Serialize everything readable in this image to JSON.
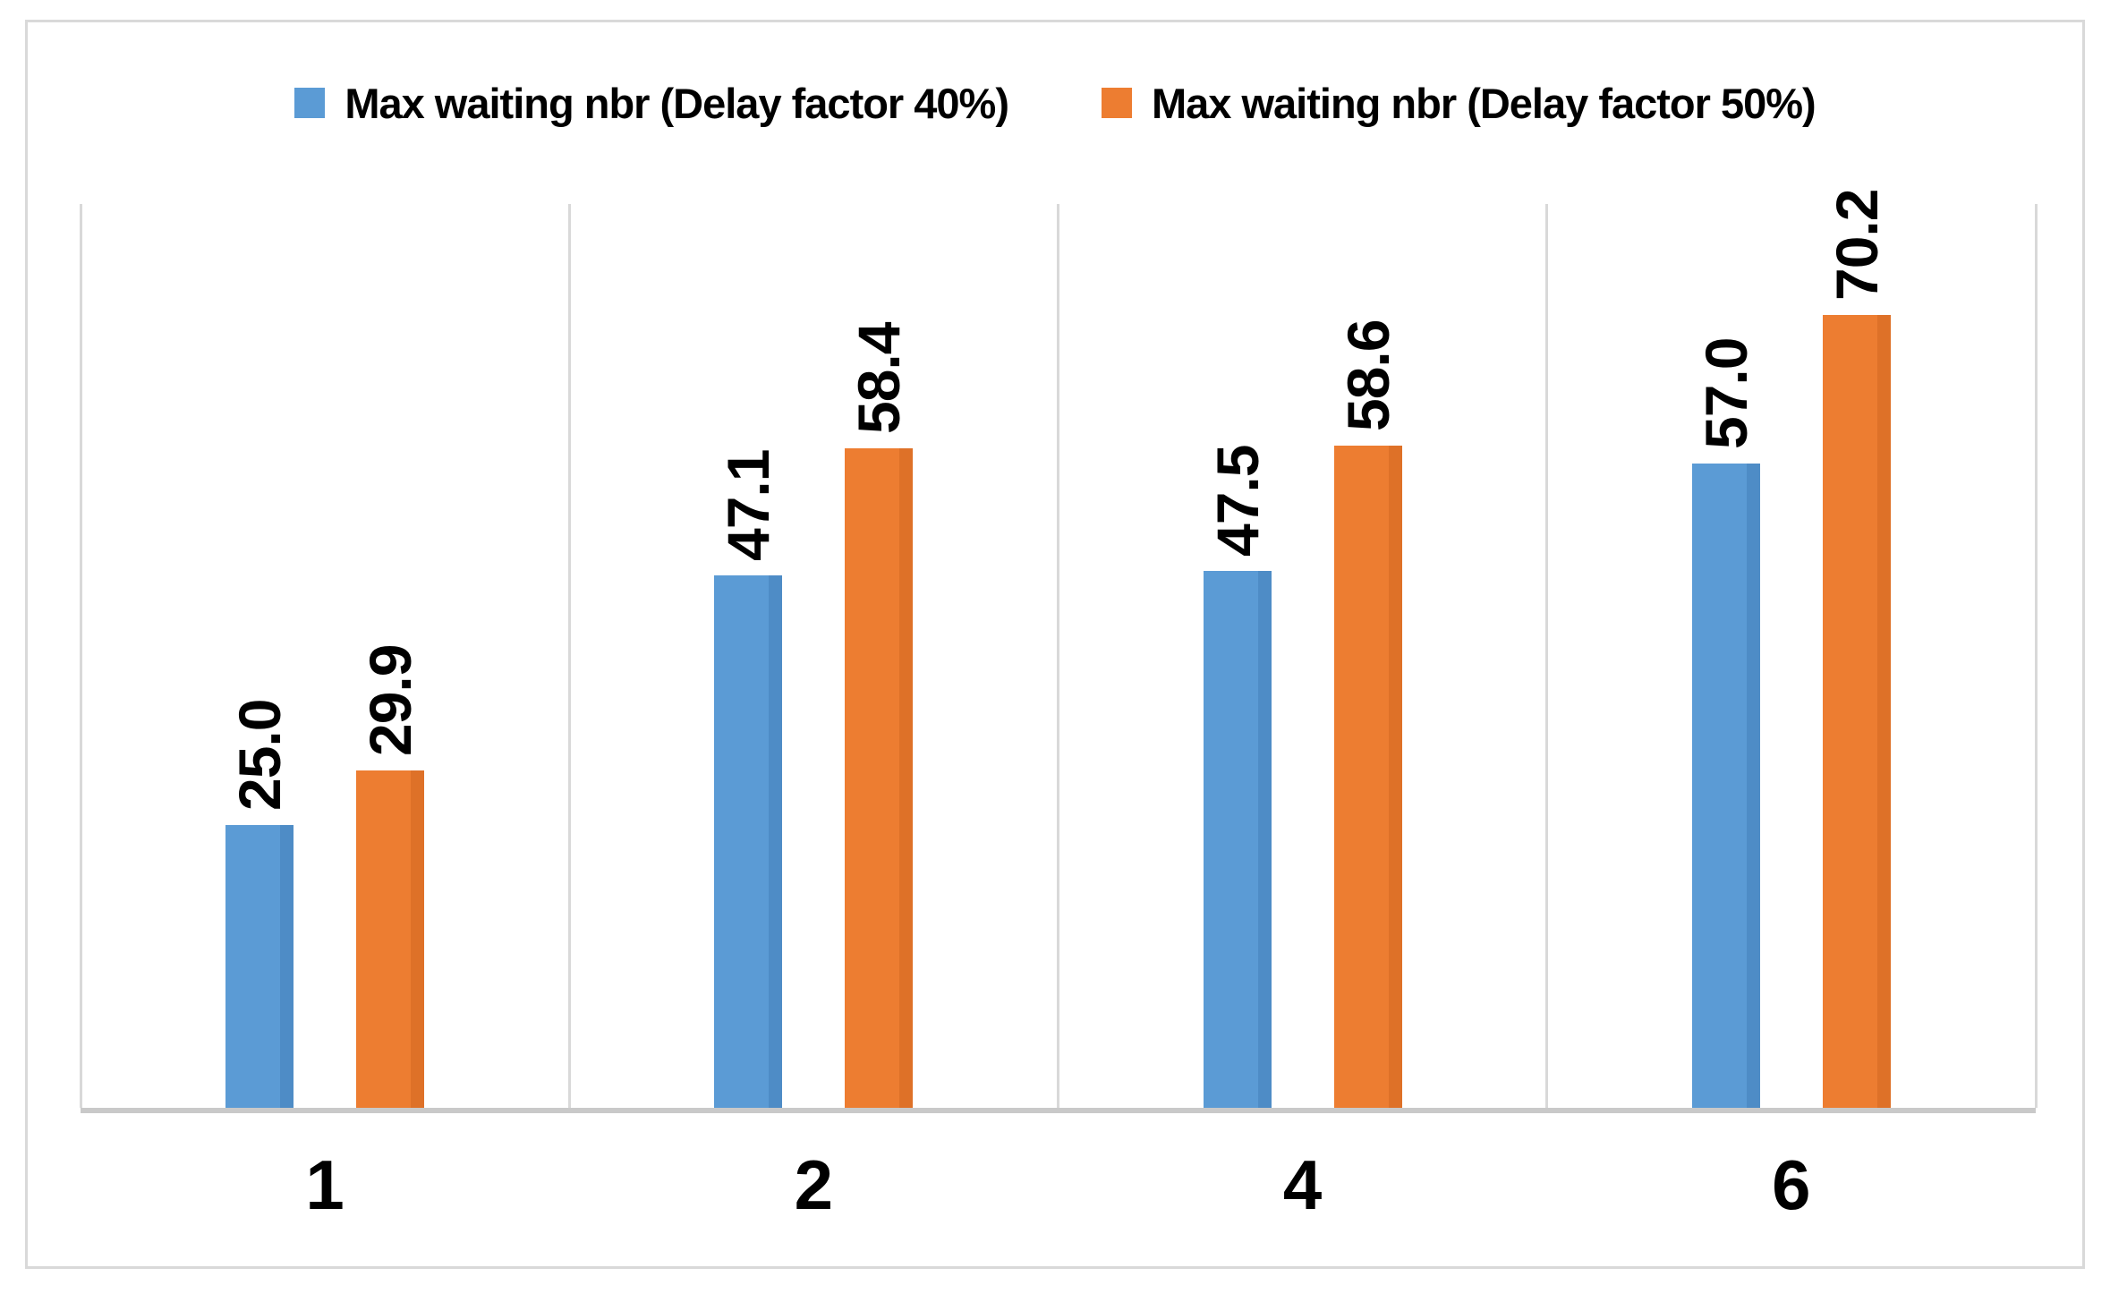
{
  "chart_data": {
    "type": "bar",
    "title": "",
    "xlabel": "",
    "ylabel": "",
    "categories": [
      "1",
      "2",
      "4",
      "6"
    ],
    "series": [
      {
        "name": "Max waiting nbr (Delay factor 40%)",
        "color": "#5B9BD5",
        "shade_color": "#4E8CC6",
        "values": [
          25.0,
          47.1,
          47.5,
          57.0
        ],
        "labels": [
          "25.0",
          "47.1",
          "47.5",
          "57.0"
        ]
      },
      {
        "name": "Max waiting nbr (Delay factor 50%)",
        "color": "#ED7D31",
        "shade_color": "#DE7128",
        "values": [
          29.9,
          58.4,
          58.6,
          70.2
        ],
        "labels": [
          "29.9",
          "58.4",
          "58.6",
          "70.2"
        ]
      }
    ],
    "ylim": [
      0,
      80
    ],
    "value_axis_visible": false,
    "grid": "vertical-category-separators-only",
    "legend_position": "top-center",
    "data_label_rotation_deg": 90,
    "colors": {
      "gridline": "#D9D9D9",
      "axis_line": "#C9C9C9",
      "chart_border": "#D9D9D9",
      "text": "#000000",
      "background": "#FFFFFF"
    }
  }
}
